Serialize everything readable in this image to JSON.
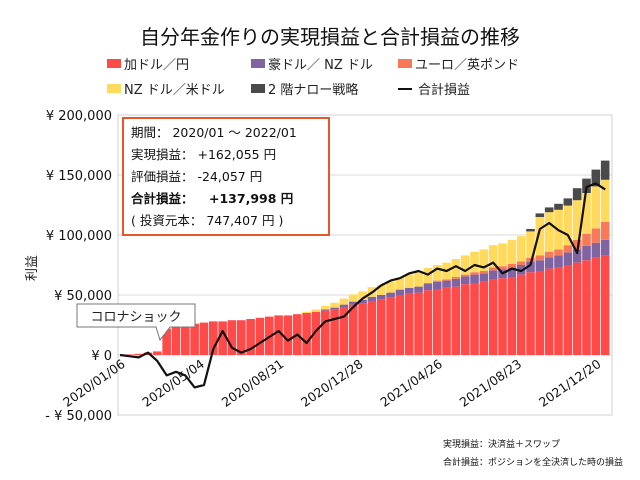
{
  "chart_data": {
    "type": "bar",
    "stacked": true,
    "title": "自分年金作りの実現損益と合計損益の推移",
    "ylabel": "利益",
    "ylim": [
      -50000,
      200000
    ],
    "yticks": [
      200000,
      150000,
      100000,
      50000,
      0,
      -50000
    ],
    "ytick_labels": [
      "¥ 200,000",
      "¥ 150,000",
      "¥ 100,000",
      "¥ 50,000",
      "¥ 0",
      "- ¥ 50,000"
    ],
    "xtick_labels": [
      "2020/01/06",
      "2020/05/04",
      "2020/08/31",
      "2020/12/28",
      "2021/04/26",
      "2021/08/23",
      "2021/12/20"
    ],
    "grid": "horizontal",
    "legend_position": "top",
    "x": [
      "2020/01/06",
      "2020/01/20",
      "2020/02/03",
      "2020/02/17",
      "2020/03/02",
      "2020/03/16",
      "2020/03/30",
      "2020/04/13",
      "2020/04/27",
      "2020/05/11",
      "2020/05/25",
      "2020/06/08",
      "2020/06/22",
      "2020/07/06",
      "2020/07/20",
      "2020/08/03",
      "2020/08/17",
      "2020/08/31",
      "2020/09/14",
      "2020/09/28",
      "2020/10/12",
      "2020/10/26",
      "2020/11/09",
      "2020/11/23",
      "2020/12/07",
      "2020/12/21",
      "2021/01/04",
      "2021/01/18",
      "2021/02/01",
      "2021/02/15",
      "2021/03/01",
      "2021/03/15",
      "2021/03/29",
      "2021/04/12",
      "2021/04/26",
      "2021/05/10",
      "2021/05/24",
      "2021/06/07",
      "2021/06/21",
      "2021/07/05",
      "2021/07/19",
      "2021/08/02",
      "2021/08/16",
      "2021/08/30",
      "2021/09/13",
      "2021/09/27",
      "2021/10/11",
      "2021/10/25",
      "2021/11/08",
      "2021/11/22",
      "2021/12/06",
      "2021/12/20",
      "2022/01/03"
    ],
    "series": [
      {
        "name": "加ドル／円",
        "color": "#ff4a4a",
        "values": [
          0,
          500,
          1000,
          2000,
          3000,
          22000,
          24000,
          25000,
          26000,
          27000,
          28000,
          28000,
          29000,
          29000,
          30000,
          31000,
          32000,
          33000,
          33000,
          34000,
          35000,
          36000,
          37000,
          38000,
          40000,
          42000,
          43000,
          45000,
          46000,
          48000,
          50000,
          51000,
          52000,
          54000,
          55000,
          56000,
          57000,
          59000,
          60000,
          61000,
          63000,
          64000,
          65000,
          67000,
          69000,
          70000,
          72000,
          73000,
          75000,
          77000,
          79000,
          81000,
          83000
        ]
      },
      {
        "name": "豪ドル／ NZ ドル",
        "color": "#8064a2",
        "values": [
          0,
          0,
          0,
          0,
          0,
          0,
          0,
          0,
          0,
          0,
          0,
          0,
          0,
          0,
          0,
          0,
          0,
          0,
          0,
          0,
          0,
          0,
          1000,
          1500,
          2000,
          2500,
          3000,
          3500,
          4000,
          4000,
          4500,
          5000,
          5000,
          5500,
          6000,
          6000,
          6500,
          6500,
          7000,
          7000,
          7500,
          7500,
          8000,
          8000,
          8500,
          9000,
          9500,
          10000,
          10500,
          11000,
          12000,
          12500,
          13000
        ]
      },
      {
        "name": "ユーロ／英ポンド",
        "color": "#f77a58",
        "values": [
          0,
          0,
          0,
          0,
          0,
          0,
          0,
          0,
          0,
          0,
          0,
          0,
          0,
          0,
          0,
          0,
          0,
          0,
          0,
          0,
          0,
          0,
          0,
          0,
          0,
          0,
          0,
          0,
          0,
          0,
          0,
          0,
          0,
          500,
          1000,
          1000,
          1500,
          1500,
          2000,
          2000,
          2500,
          2500,
          3000,
          3000,
          3500,
          4000,
          4500,
          5000,
          6000,
          8000,
          10000,
          12000,
          15000
        ]
      },
      {
        "name": "NZ ドル／米ドル",
        "color": "#ffda5c",
        "values": [
          0,
          0,
          0,
          0,
          0,
          0,
          0,
          0,
          0,
          0,
          0,
          0,
          0,
          0,
          0,
          0,
          0,
          0,
          0,
          0,
          1000,
          2000,
          3000,
          4000,
          5000,
          6000,
          7000,
          8000,
          8500,
          9000,
          10000,
          11000,
          12000,
          12500,
          13000,
          14000,
          15000,
          16000,
          17000,
          18000,
          18500,
          19000,
          20000,
          21000,
          22000,
          32000,
          33000,
          33000,
          33000,
          33000,
          34000,
          35000,
          35000
        ]
      },
      {
        "name": "2 階ナロー戦略",
        "color": "#4a4a4a",
        "values": [
          0,
          0,
          0,
          0,
          0,
          0,
          0,
          0,
          0,
          0,
          0,
          0,
          0,
          0,
          0,
          0,
          0,
          0,
          0,
          0,
          0,
          0,
          0,
          0,
          0,
          0,
          0,
          0,
          0,
          0,
          0,
          0,
          0,
          0,
          0,
          0,
          0,
          0,
          0,
          0,
          0,
          0,
          0,
          0,
          2000,
          3000,
          4000,
          5000,
          6000,
          10000,
          12000,
          14000,
          16000
        ]
      }
    ],
    "line": {
      "name": "合計損益",
      "color": "#111111",
      "type": "line",
      "values": [
        0,
        -1000,
        -2000,
        2000,
        -5000,
        -17000,
        -14000,
        -17000,
        -27000,
        -25000,
        5000,
        20000,
        6000,
        2000,
        5000,
        10000,
        15000,
        20000,
        12000,
        17000,
        10000,
        20000,
        28000,
        30000,
        32000,
        40000,
        47000,
        52000,
        58000,
        62000,
        64000,
        68000,
        70000,
        67000,
        72000,
        70000,
        74000,
        70000,
        75000,
        73000,
        77000,
        68000,
        72000,
        70000,
        75000,
        105000,
        110000,
        104000,
        100000,
        85000,
        140000,
        143000,
        138000
      ]
    },
    "annotation": "コロナショック"
  },
  "info_box": {
    "period": "期間： 2020/01 ～ 2022/01",
    "realized": "実現損益： +162,055 円",
    "unrealized": "評価損益： -24,057 円",
    "total_label": "合計損益：",
    "total_value": "+137,998 円",
    "principal": "( 投資元本： 747,407 円 )",
    "border_color": "#e8572a",
    "accent_color": "#e8572a"
  },
  "notes": [
    "実現損益：決済益＋スワップ",
    "合計損益：ポジションを全決済した時の損益"
  ]
}
